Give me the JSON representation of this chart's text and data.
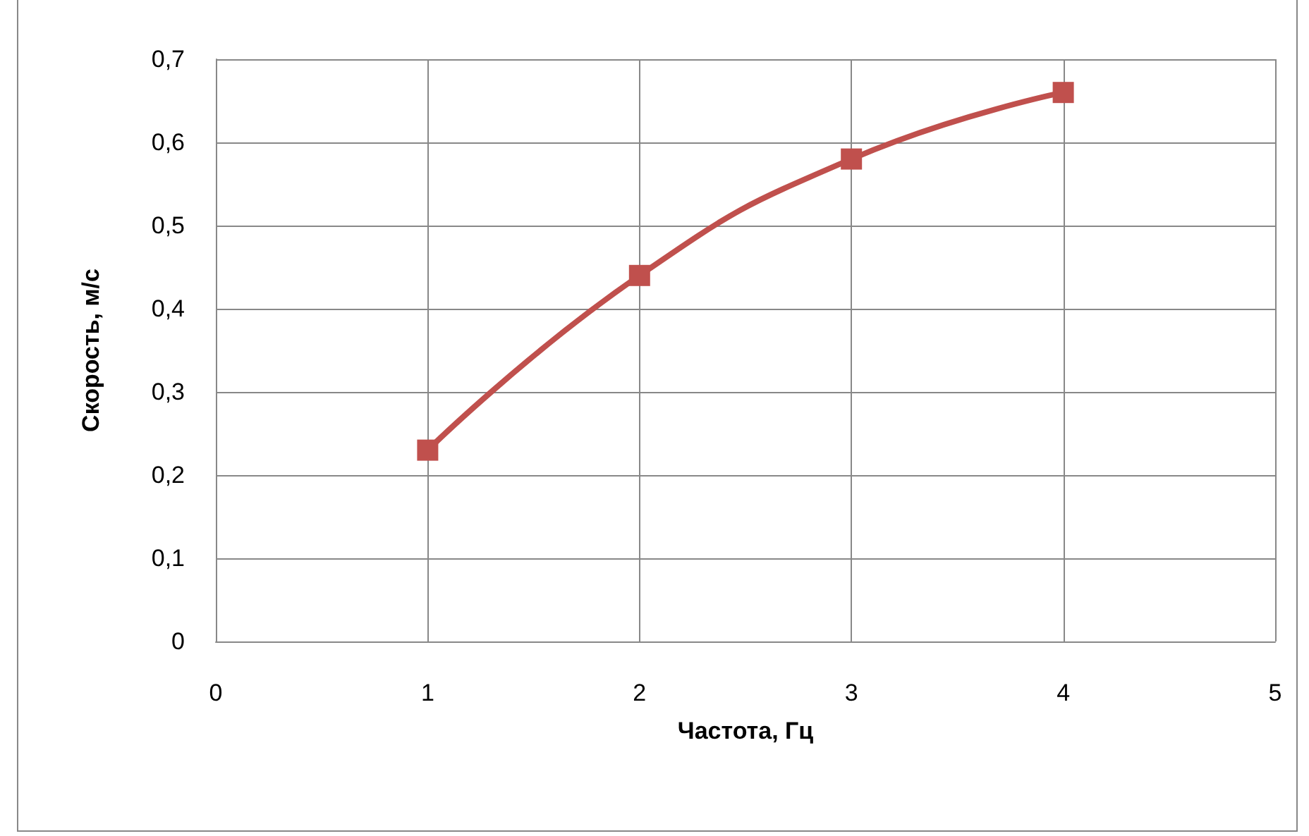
{
  "chart_data": {
    "type": "line",
    "xlabel": "Частота, Гц",
    "ylabel": "Скорость, м/с",
    "x": [
      1,
      2,
      3,
      4
    ],
    "series": [
      {
        "color": "#c0504d",
        "values": [
          0.23,
          0.44,
          0.58,
          0.66
        ]
      }
    ],
    "xlim": [
      0,
      5
    ],
    "xticks": [
      0,
      1,
      2,
      3,
      4,
      5
    ],
    "ylim": [
      0,
      0.7
    ],
    "yticks": [
      0,
      {
        "value": 0.1,
        "label": "0,1"
      },
      {
        "value": 0.2,
        "label": "0,2"
      },
      {
        "value": 0.3,
        "label": "0,3"
      },
      {
        "value": 0.4,
        "label": "0,4"
      },
      {
        "value": 0.5,
        "label": "0,5"
      },
      {
        "value": 0.6,
        "label": "0,6"
      },
      {
        "value": 0.7,
        "label": "0,7"
      }
    ],
    "grid": true,
    "marker": "square",
    "line_style": "solid"
  }
}
